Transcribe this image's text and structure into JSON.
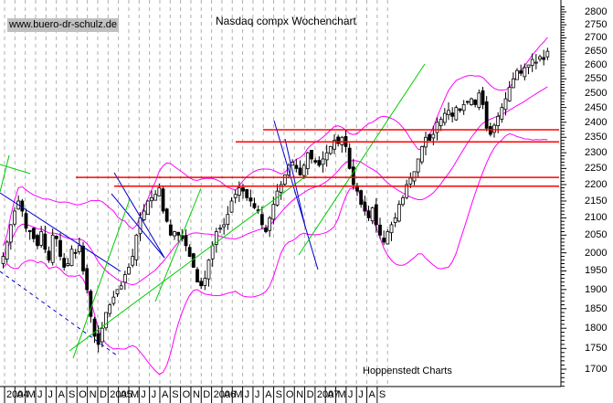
{
  "watermark": "www.buero-dr-schulz.de",
  "title": "Nasdaq compx Wochenchart",
  "credit": "Hoppenstedt Charts",
  "colors": {
    "candle": "#000000",
    "bollinger": "#ff00ff",
    "support": "#ff0000",
    "trend_down": "#0000cc",
    "trend_up": "#00cc00",
    "grid": "#b0b0b0",
    "watermark_bg": "#c0c0c0"
  },
  "chart_data": {
    "type": "candlestick",
    "title": "Nasdaq compx Wochenchart",
    "xlabel": "",
    "ylabel": "",
    "ylim": [
      1650,
      2820
    ],
    "y_scale": "log",
    "y_ticks": [
      2800,
      2750,
      2700,
      2650,
      2600,
      2550,
      2500,
      2450,
      2400,
      2350,
      2300,
      2250,
      2200,
      2150,
      2100,
      2050,
      2000,
      1950,
      1900,
      1850,
      1800,
      1750,
      1700
    ],
    "x_ticks": [
      "2004",
      "A",
      "M",
      "J",
      "J",
      "A",
      "S",
      "O",
      "N",
      "D",
      "2005",
      "A",
      "M",
      "J",
      "J",
      "A",
      "S",
      "O",
      "N",
      "D",
      "2006",
      "A",
      "M",
      "J",
      "J",
      "A",
      "S",
      "O",
      "N",
      "D",
      "2007",
      "A",
      "M",
      "J",
      "J",
      "A",
      "S"
    ],
    "horizontal_lines": [
      2375,
      2335,
      2222,
      2195
    ],
    "closes_weekly_approx": [
      1990,
      2030,
      2080,
      2120,
      2150,
      2120,
      2070,
      2060,
      2040,
      2020,
      2060,
      2010,
      1980,
      2050,
      2040,
      1990,
      1960,
      1970,
      2010,
      2000,
      2020,
      1950,
      1900,
      1830,
      1780,
      1760,
      1800,
      1840,
      1860,
      1880,
      1900,
      1910,
      1940,
      1960,
      1990,
      2050,
      2100,
      2120,
      2150,
      2160,
      2170,
      2190,
      2120,
      2090,
      2050,
      2060,
      2050,
      2040,
      2020,
      1990,
      1960,
      1920,
      1910,
      1930,
      1980,
      2020,
      2060,
      2070,
      2080,
      2110,
      2150,
      2170,
      2190,
      2180,
      2160,
      2150,
      2130,
      2120,
      2080,
      2060,
      2100,
      2140,
      2180,
      2200,
      2230,
      2260,
      2270,
      2250,
      2230,
      2260,
      2300,
      2280,
      2270,
      2260,
      2280,
      2300,
      2320,
      2340,
      2330,
      2350,
      2320,
      2250,
      2200,
      2180,
      2140,
      2120,
      2100,
      2130,
      2080,
      2050,
      2030,
      2060,
      2080,
      2100,
      2140,
      2160,
      2200,
      2220,
      2240,
      2280,
      2320,
      2350,
      2340,
      2360,
      2400,
      2410,
      2430,
      2440,
      2420,
      2450,
      2440,
      2460,
      2470,
      2480,
      2460,
      2500,
      2460,
      2380,
      2360,
      2390,
      2420,
      2450,
      2480,
      2520,
      2550,
      2580,
      2570,
      2590,
      2600,
      2620,
      2610,
      2630,
      2620,
      2650
    ],
    "series_notes": "Weekly candlesticks with Bollinger bands (magenta), downtrend channels (blue), uptrend lines (green), horizontal resistance/support lines (red)"
  },
  "y_axis": {
    "labels": [
      "2800",
      "2750",
      "2700",
      "2650",
      "2600",
      "2550",
      "2500",
      "2450",
      "2400",
      "2350",
      "2300",
      "2250",
      "2200",
      "2150",
      "2100",
      "2050",
      "2000",
      "1950",
      "1900",
      "1850",
      "1800",
      "1750",
      "1700"
    ]
  },
  "x_axis": {
    "labels": [
      "2004",
      "A",
      "M",
      "J",
      "J",
      "A",
      "S",
      "O",
      "N",
      "D",
      "2005",
      "A",
      "M",
      "J",
      "J",
      "A",
      "S",
      "O",
      "N",
      "D",
      "2006",
      "A",
      "M",
      "J",
      "J",
      "A",
      "S",
      "O",
      "N",
      "D",
      "2007",
      "A",
      "M",
      "J",
      "J",
      "A",
      "S"
    ]
  }
}
